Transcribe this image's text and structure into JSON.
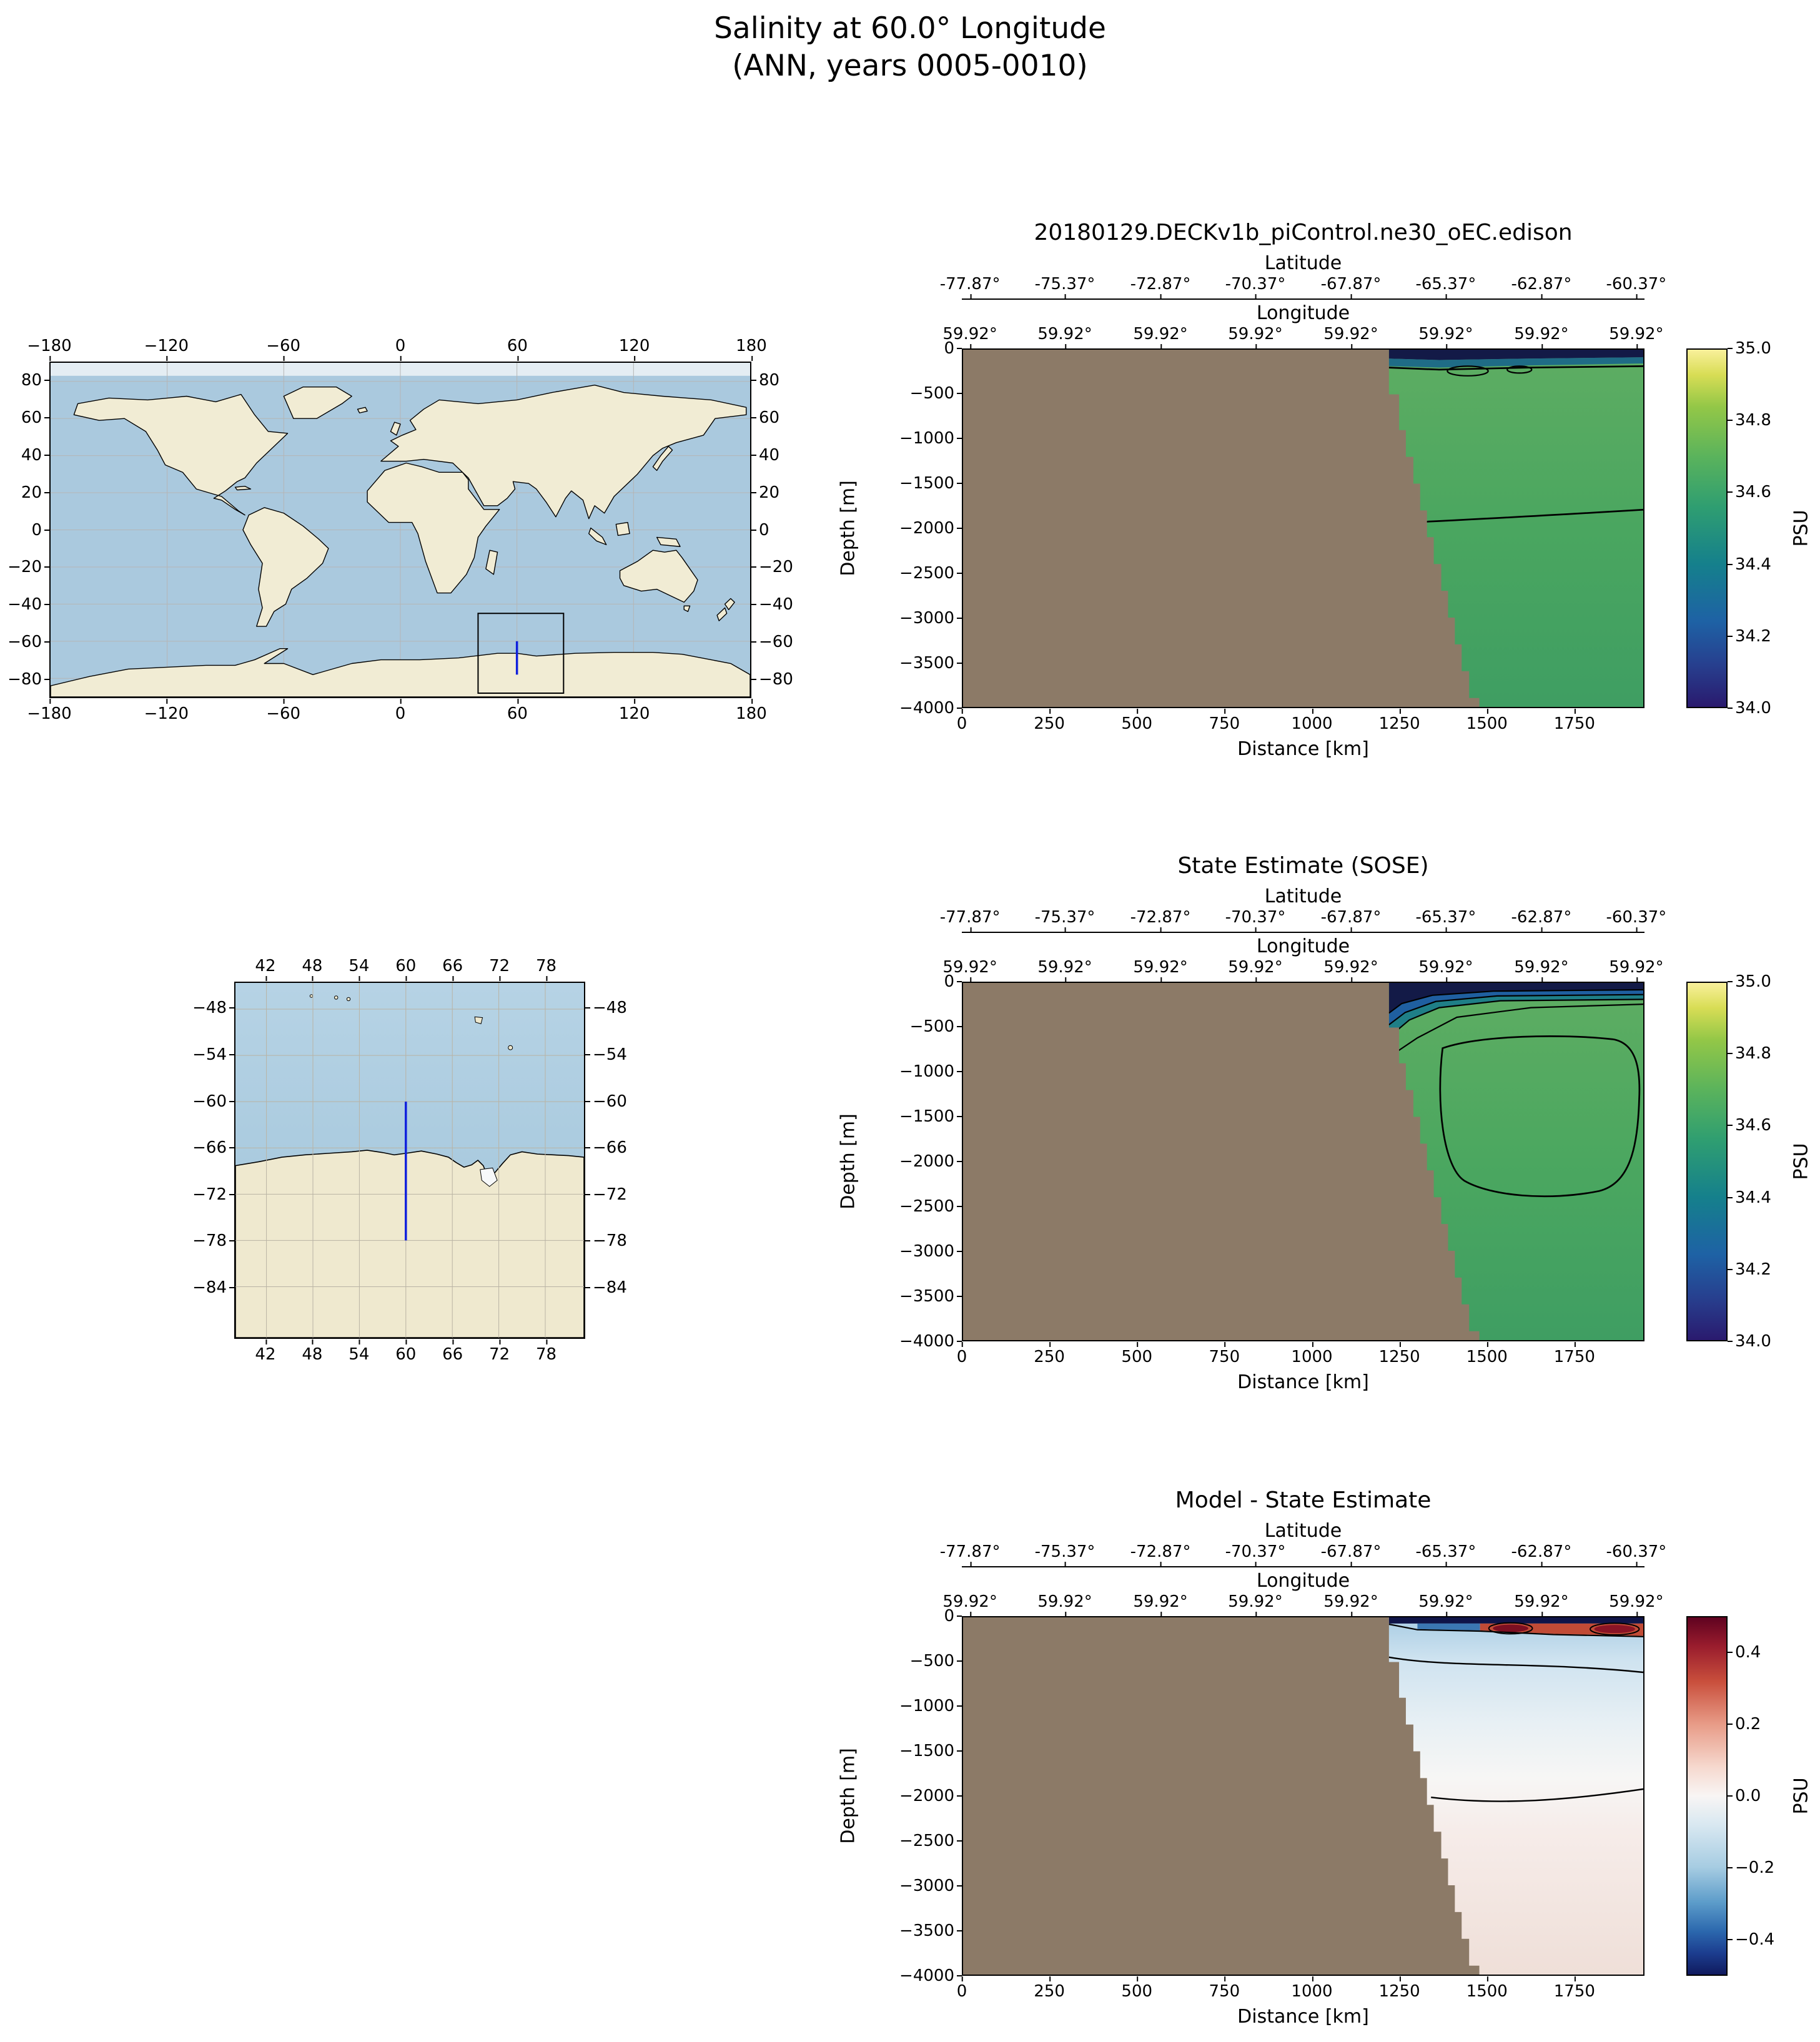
{
  "figure": {
    "title": "Salinity at 60.0° Longitude",
    "subtitle": "(ANN, years 0005-0010)"
  },
  "world_map": {
    "lon_ticks": [
      "−180",
      "−120",
      "−60",
      "0",
      "60",
      "120",
      "180"
    ],
    "lat_ticks": [
      "80",
      "60",
      "40",
      "20",
      "0",
      "−20",
      "−40",
      "−60",
      "−80"
    ],
    "colors": {
      "ocean": "#aac9de",
      "land": "#f1ecd4",
      "coastline": "#000000",
      "region_box": "#000000",
      "transect": "#1020dd"
    }
  },
  "regional_map": {
    "lon_ticks": [
      "42",
      "48",
      "54",
      "60",
      "66",
      "72",
      "78"
    ],
    "lat_ticks": [
      "−48",
      "−54",
      "−60",
      "−66",
      "−72",
      "−78",
      "−84"
    ],
    "colors": {
      "ocean": "#a9cade",
      "land": "#efe9cf",
      "transect": "#1020dd"
    }
  },
  "panels": [
    {
      "title": "20180129.DECKv1b_piControl.ne30_oEC.edison",
      "lat_axis_label": "Latitude",
      "lat_ticks": [
        "-77.87°",
        "-75.37°",
        "-72.87°",
        "-70.37°",
        "-67.87°",
        "-65.37°",
        "-62.87°",
        "-60.37°"
      ],
      "lon_axis_label": "Longitude",
      "lon_ticks": [
        "59.92°",
        "59.92°",
        "59.92°",
        "59.92°",
        "59.92°",
        "59.92°",
        "59.92°",
        "59.92°"
      ],
      "depth_axis_label": "Depth [m]",
      "depth_ticks": [
        "0",
        "−500",
        "−1000",
        "−1500",
        "−2000",
        "−2500",
        "−3000",
        "−3500",
        "−4000"
      ],
      "distance_axis_label": "Distance [km]",
      "distance_ticks": [
        "0",
        "250",
        "500",
        "750",
        "1000",
        "1250",
        "1500",
        "1750"
      ],
      "colorbar_label": "PSU",
      "colorbar_ticks": [
        "35.0",
        "34.8",
        "34.6",
        "34.4",
        "34.2",
        "34.0"
      ]
    },
    {
      "title": "State Estimate (SOSE)",
      "lat_axis_label": "Latitude",
      "lat_ticks": [
        "-77.87°",
        "-75.37°",
        "-72.87°",
        "-70.37°",
        "-67.87°",
        "-65.37°",
        "-62.87°",
        "-60.37°"
      ],
      "lon_axis_label": "Longitude",
      "lon_ticks": [
        "59.92°",
        "59.92°",
        "59.92°",
        "59.92°",
        "59.92°",
        "59.92°",
        "59.92°",
        "59.92°"
      ],
      "depth_axis_label": "Depth [m]",
      "depth_ticks": [
        "0",
        "−500",
        "−1000",
        "−1500",
        "−2000",
        "−2500",
        "−3000",
        "−3500",
        "−4000"
      ],
      "distance_axis_label": "Distance [km]",
      "distance_ticks": [
        "0",
        "250",
        "500",
        "750",
        "1000",
        "1250",
        "1500",
        "1750"
      ],
      "colorbar_label": "PSU",
      "colorbar_ticks": [
        "35.0",
        "34.8",
        "34.6",
        "34.4",
        "34.2",
        "34.0"
      ]
    },
    {
      "title": "Model - State Estimate",
      "lat_axis_label": "Latitude",
      "lat_ticks": [
        "-77.87°",
        "-75.37°",
        "-72.87°",
        "-70.37°",
        "-67.87°",
        "-65.37°",
        "-62.87°",
        "-60.37°"
      ],
      "lon_axis_label": "Longitude",
      "lon_ticks": [
        "59.92°",
        "59.92°",
        "59.92°",
        "59.92°",
        "59.92°",
        "59.92°",
        "59.92°",
        "59.92°"
      ],
      "depth_axis_label": "Depth [m]",
      "depth_ticks": [
        "0",
        "−500",
        "−1000",
        "−1500",
        "−2000",
        "−2500",
        "−3000",
        "−3500",
        "−4000"
      ],
      "distance_axis_label": "Distance [km]",
      "distance_ticks": [
        "0",
        "250",
        "500",
        "750",
        "1000",
        "1250",
        "1500",
        "1750"
      ],
      "colorbar_label": "PSU",
      "colorbar_ticks": [
        "0.4",
        "0.2",
        "0.0",
        "−0.2",
        "−0.4"
      ]
    }
  ],
  "chart_data": [
    {
      "type": "map",
      "panel": "global-context",
      "extent": {
        "lon": [
          -180,
          180
        ],
        "lat": [
          -90,
          90
        ]
      },
      "xticks": [
        -180,
        -120,
        -60,
        0,
        60,
        120,
        180
      ],
      "yticks": [
        80,
        60,
        40,
        20,
        0,
        -20,
        -40,
        -60,
        -80
      ],
      "region_box": {
        "lon": [
          40,
          84
        ],
        "lat": [
          -88,
          -45
        ]
      },
      "transect": {
        "lon": 60,
        "lat": [
          -78,
          -60
        ]
      },
      "grid": true
    },
    {
      "type": "map",
      "panel": "regional",
      "extent": {
        "lon": [
          38,
          83
        ],
        "lat": [
          -90.6,
          -44.6
        ]
      },
      "xticks": [
        42,
        48,
        54,
        60,
        66,
        72,
        78
      ],
      "yticks": [
        -48,
        -54,
        -60,
        -66,
        -72,
        -78,
        -84
      ],
      "transect": {
        "lon": 60,
        "lat": [
          -78,
          -60
        ]
      },
      "coastline_latitude_range": [
        -69.5,
        -66.3
      ],
      "grid": true
    },
    {
      "type": "heatmap",
      "panel": "model",
      "title": "20180129.DECKv1b_piControl.ne30_oEC.edison",
      "xlabel": "Distance [km]",
      "ylabel": "Depth [m]",
      "x_range_km": [
        0,
        1950
      ],
      "y_range_m": [
        -4000,
        0
      ],
      "xticks_km": [
        0,
        250,
        500,
        750,
        1000,
        1250,
        1500,
        1750
      ],
      "yticks_m": [
        0,
        -500,
        -1000,
        -1500,
        -2000,
        -2500,
        -3000,
        -3500,
        -4000
      ],
      "top_axis_latitude": {
        "label": "Latitude",
        "ticks_deg": [
          -77.87,
          -75.37,
          -72.87,
          -70.37,
          -67.87,
          -65.37,
          -62.87,
          -60.37
        ]
      },
      "top_axis_longitude": {
        "label": "Longitude",
        "ticks_deg": [
          59.92,
          59.92,
          59.92,
          59.92,
          59.92,
          59.92,
          59.92,
          59.92
        ]
      },
      "colorbar": {
        "label": "PSU",
        "range": [
          34.0,
          35.0
        ],
        "ticks": [
          35.0,
          34.8,
          34.6,
          34.4,
          34.2,
          34.0
        ],
        "colormap": "haline: dark blue → teal → green → pale yellow"
      },
      "land_mask": "brown fill for distance 0–~1220 km (Antarctic continent/shelf) and beneath bathymetry",
      "bathymetry_steps_km_m": [
        [
          1220,
          0
        ],
        [
          1220,
          -500
        ],
        [
          1250,
          -900
        ],
        [
          1270,
          -1200
        ],
        [
          1290,
          -1500
        ],
        [
          1310,
          -1800
        ],
        [
          1330,
          -2100
        ],
        [
          1350,
          -2400
        ],
        [
          1370,
          -2700
        ],
        [
          1390,
          -3000
        ],
        [
          1410,
          -3300
        ],
        [
          1430,
          -3600
        ],
        [
          1450,
          -3900
        ],
        [
          1480,
          -4000
        ]
      ],
      "field_summary": {
        "surface_layer": "34.0–34.3 PSU thin dark band in top ~150 m with small closed contours near 1400–1650 km",
        "interior": "≈34.6–34.7 PSU (green) through most of the section",
        "deep_contour": "≈34.6 contour running near −1900 m from 1250 km to the right edge"
      }
    },
    {
      "type": "heatmap",
      "panel": "state-estimate",
      "title": "State Estimate (SOSE)",
      "xlabel": "Distance [km]",
      "ylabel": "Depth [m]",
      "x_range_km": [
        0,
        1950
      ],
      "y_range_m": [
        -4000,
        0
      ],
      "xticks_km": [
        0,
        250,
        500,
        750,
        1000,
        1250,
        1500,
        1750
      ],
      "yticks_m": [
        0,
        -500,
        -1000,
        -1500,
        -2000,
        -2500,
        -3000,
        -3500,
        -4000
      ],
      "top_axis_latitude": {
        "label": "Latitude",
        "ticks_deg": [
          -77.87,
          -75.37,
          -72.87,
          -70.37,
          -67.87,
          -65.37,
          -62.87,
          -60.37
        ]
      },
      "top_axis_longitude": {
        "label": "Longitude",
        "ticks_deg": [
          59.92,
          59.92,
          59.92,
          59.92,
          59.92,
          59.92,
          59.92,
          59.92
        ]
      },
      "colorbar": {
        "label": "PSU",
        "range": [
          34.0,
          35.0
        ],
        "ticks": [
          35.0,
          34.8,
          34.6,
          34.4,
          34.2,
          34.0
        ],
        "colormap": "haline: dark blue → teal → green → pale yellow"
      },
      "land_mask": "brown fill for distance 0–~1220 km and beneath bathymetry",
      "bathymetry_steps_km_m": [
        [
          1220,
          0
        ],
        [
          1220,
          -500
        ],
        [
          1250,
          -900
        ],
        [
          1270,
          -1200
        ],
        [
          1290,
          -1500
        ],
        [
          1310,
          -1800
        ],
        [
          1330,
          -2100
        ],
        [
          1350,
          -2400
        ],
        [
          1370,
          -2700
        ],
        [
          1390,
          -3000
        ],
        [
          1410,
          -3300
        ],
        [
          1430,
          -3600
        ],
        [
          1450,
          -3900
        ],
        [
          1480,
          -4000
        ]
      ],
      "field_summary": {
        "surface_layer": "34.0–34.4 PSU fresh layer, thickening toward the shelf edge with fanning contours down to ~−600 m",
        "interior": "≈34.65–34.75 PSU inside a large closed contour spanning ~1300–1950 km, −700 to −2400 m",
        "deep": "≈34.6 PSU below and outside the closed contour"
      }
    },
    {
      "type": "heatmap",
      "panel": "difference",
      "title": "Model - State Estimate",
      "xlabel": "Distance [km]",
      "ylabel": "Depth [m]",
      "x_range_km": [
        0,
        1950
      ],
      "y_range_m": [
        -4000,
        0
      ],
      "xticks_km": [
        0,
        250,
        500,
        750,
        1000,
        1250,
        1500,
        1750
      ],
      "yticks_m": [
        0,
        -500,
        -1000,
        -1500,
        -2000,
        -2500,
        -3000,
        -3500,
        -4000
      ],
      "top_axis_latitude": {
        "label": "Latitude",
        "ticks_deg": [
          -77.87,
          -75.37,
          -72.87,
          -70.37,
          -67.87,
          -65.37,
          -62.87,
          -60.37
        ]
      },
      "top_axis_longitude": {
        "label": "Longitude",
        "ticks_deg": [
          59.92,
          59.92,
          59.92,
          59.92,
          59.92,
          59.92,
          59.92,
          59.92
        ]
      },
      "colorbar": {
        "label": "PSU",
        "range": [
          -0.5,
          0.5
        ],
        "ticks": [
          0.4,
          0.2,
          0.0,
          -0.2,
          -0.4
        ],
        "colormap": "diverging dark blue → white → dark red"
      },
      "land_mask": "brown fill for distance 0–~1220 km and beneath bathymetry",
      "bathymetry_steps_km_m": [
        [
          1220,
          0
        ],
        [
          1220,
          -500
        ],
        [
          1250,
          -900
        ],
        [
          1270,
          -1200
        ],
        [
          1290,
          -1500
        ],
        [
          1310,
          -1800
        ],
        [
          1330,
          -2100
        ],
        [
          1350,
          -2400
        ],
        [
          1370,
          -2700
        ],
        [
          1390,
          -3000
        ],
        [
          1410,
          -3300
        ],
        [
          1430,
          -3600
        ],
        [
          1450,
          -3900
        ],
        [
          1480,
          -4000
        ]
      ],
      "field_summary": {
        "surface_band": "strong negative (−0.4 to −0.5, dark blue) in top ~70 m with positive patches (+0.2 to +0.45, red) between ~1450–1950 km",
        "upper_ocean": "≈ −0.05 to −0.1 PSU (light blue) from ~−200 to −1500 m",
        "deep_ocean": "≈ +0.05 PSU (light pink) below ~−2000 m",
        "zero_contour": "near −1900 m sloping upward toward the right edge"
      }
    }
  ]
}
